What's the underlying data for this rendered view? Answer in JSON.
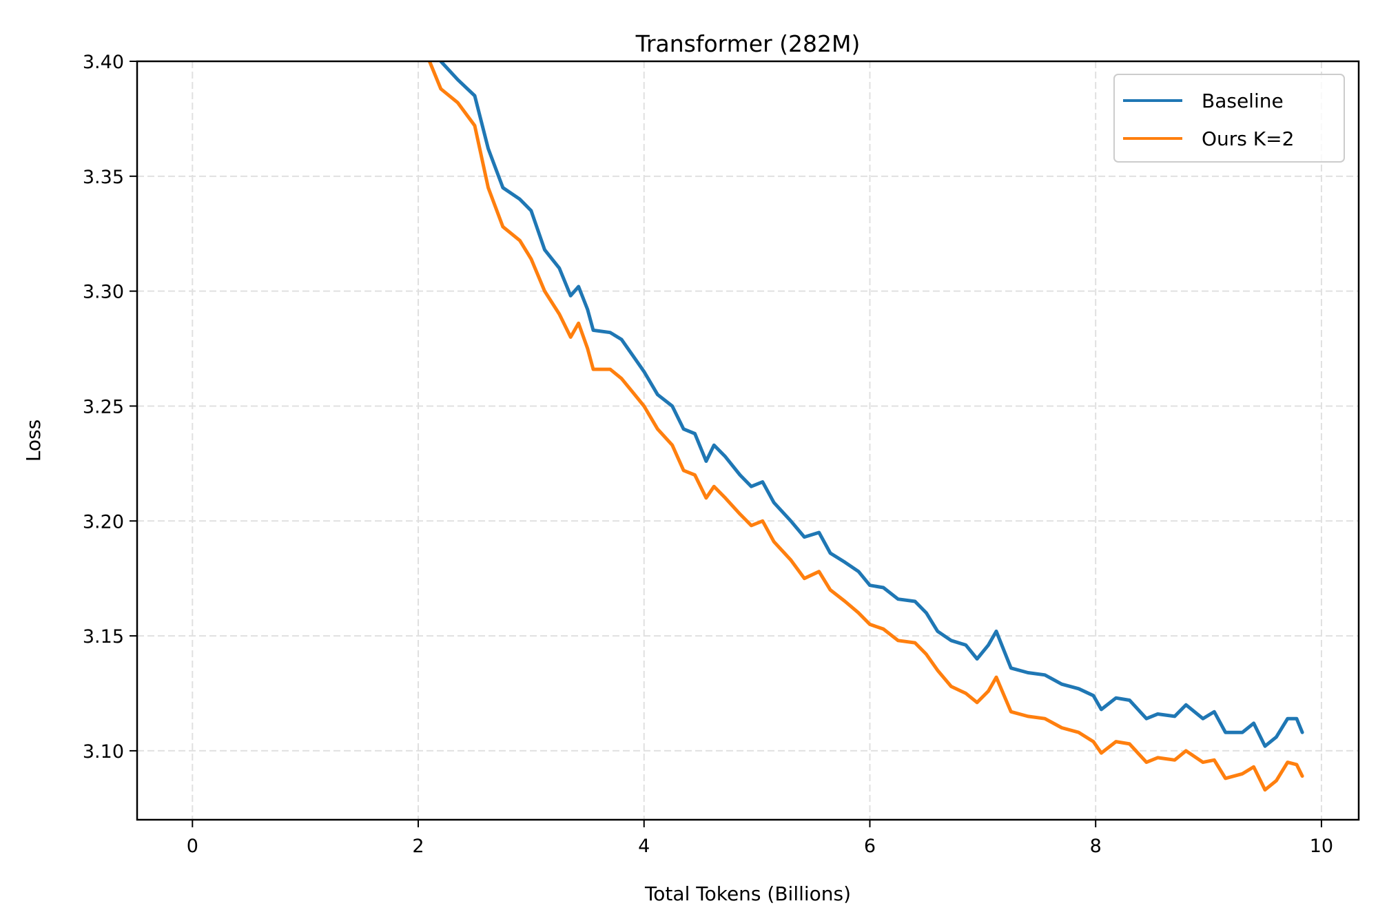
{
  "chart_data": {
    "type": "line",
    "title": "Transformer (282M)",
    "xlabel": "Total Tokens (Billions)",
    "ylabel": "Loss",
    "xlim": [
      -0.49,
      10.33
    ],
    "ylim": [
      3.07,
      3.4
    ],
    "xticks": [
      0,
      2,
      4,
      6,
      8,
      10
    ],
    "xtick_labels": [
      "0",
      "2",
      "4",
      "6",
      "8",
      "10"
    ],
    "yticks": [
      3.1,
      3.15,
      3.2,
      3.25,
      3.3,
      3.35,
      3.4
    ],
    "ytick_labels": [
      "3.10",
      "3.15",
      "3.20",
      "3.25",
      "3.30",
      "3.35",
      "3.40"
    ],
    "grid": true,
    "legend_position": "upper right",
    "series": [
      {
        "name": "Baseline",
        "color": "#1f77b4",
        "x": [
          2.2,
          2.35,
          2.5,
          2.62,
          2.75,
          2.9,
          3.0,
          3.12,
          3.25,
          3.35,
          3.42,
          3.5,
          3.55,
          3.7,
          3.8,
          3.9,
          4.0,
          4.12,
          4.25,
          4.35,
          4.45,
          4.55,
          4.62,
          4.72,
          4.85,
          4.95,
          5.05,
          5.15,
          5.3,
          5.42,
          5.55,
          5.65,
          5.78,
          5.9,
          6.0,
          6.12,
          6.25,
          6.4,
          6.5,
          6.6,
          6.72,
          6.85,
          6.95,
          7.05,
          7.12,
          7.25,
          7.4,
          7.55,
          7.7,
          7.85,
          7.98,
          8.05,
          8.18,
          8.3,
          8.45,
          8.55,
          8.7,
          8.8,
          8.95,
          9.05,
          9.15,
          9.3,
          9.4,
          9.5,
          9.6,
          9.7,
          9.78,
          9.83
        ],
        "values": [
          3.4,
          3.392,
          3.385,
          3.362,
          3.345,
          3.34,
          3.335,
          3.318,
          3.31,
          3.298,
          3.302,
          3.292,
          3.283,
          3.282,
          3.279,
          3.272,
          3.265,
          3.255,
          3.25,
          3.24,
          3.238,
          3.226,
          3.233,
          3.228,
          3.22,
          3.215,
          3.217,
          3.208,
          3.2,
          3.193,
          3.195,
          3.186,
          3.182,
          3.178,
          3.172,
          3.171,
          3.166,
          3.165,
          3.16,
          3.152,
          3.148,
          3.146,
          3.14,
          3.146,
          3.152,
          3.136,
          3.134,
          3.133,
          3.129,
          3.127,
          3.124,
          3.118,
          3.123,
          3.122,
          3.114,
          3.116,
          3.115,
          3.12,
          3.114,
          3.117,
          3.108,
          3.108,
          3.112,
          3.102,
          3.106,
          3.114,
          3.114,
          3.108
        ]
      },
      {
        "name": "Ours K=2",
        "color": "#ff7f0e",
        "x": [
          2.1,
          2.2,
          2.35,
          2.5,
          2.62,
          2.75,
          2.9,
          3.0,
          3.12,
          3.25,
          3.35,
          3.42,
          3.5,
          3.55,
          3.7,
          3.8,
          3.9,
          4.0,
          4.12,
          4.25,
          4.35,
          4.45,
          4.55,
          4.62,
          4.72,
          4.85,
          4.95,
          5.05,
          5.15,
          5.3,
          5.42,
          5.55,
          5.65,
          5.78,
          5.9,
          6.0,
          6.12,
          6.25,
          6.4,
          6.5,
          6.6,
          6.72,
          6.85,
          6.95,
          7.05,
          7.12,
          7.25,
          7.4,
          7.55,
          7.7,
          7.85,
          7.98,
          8.05,
          8.18,
          8.3,
          8.45,
          8.55,
          8.7,
          8.8,
          8.95,
          9.05,
          9.15,
          9.3,
          9.4,
          9.5,
          9.6,
          9.7,
          9.78,
          9.83
        ],
        "values": [
          3.4,
          3.388,
          3.382,
          3.372,
          3.345,
          3.328,
          3.322,
          3.314,
          3.3,
          3.29,
          3.28,
          3.286,
          3.275,
          3.266,
          3.266,
          3.262,
          3.256,
          3.25,
          3.24,
          3.233,
          3.222,
          3.22,
          3.21,
          3.215,
          3.21,
          3.203,
          3.198,
          3.2,
          3.191,
          3.183,
          3.175,
          3.178,
          3.17,
          3.165,
          3.16,
          3.155,
          3.153,
          3.148,
          3.147,
          3.142,
          3.135,
          3.128,
          3.125,
          3.121,
          3.126,
          3.132,
          3.117,
          3.115,
          3.114,
          3.11,
          3.108,
          3.104,
          3.099,
          3.104,
          3.103,
          3.095,
          3.097,
          3.096,
          3.1,
          3.095,
          3.096,
          3.088,
          3.09,
          3.093,
          3.083,
          3.087,
          3.095,
          3.094,
          3.089
        ]
      }
    ]
  },
  "colors": {
    "baseline": "#1f77b4",
    "ours": "#ff7f0e",
    "grid": "#e0e0e0",
    "axis": "#000000",
    "legend_border": "#cccccc"
  }
}
